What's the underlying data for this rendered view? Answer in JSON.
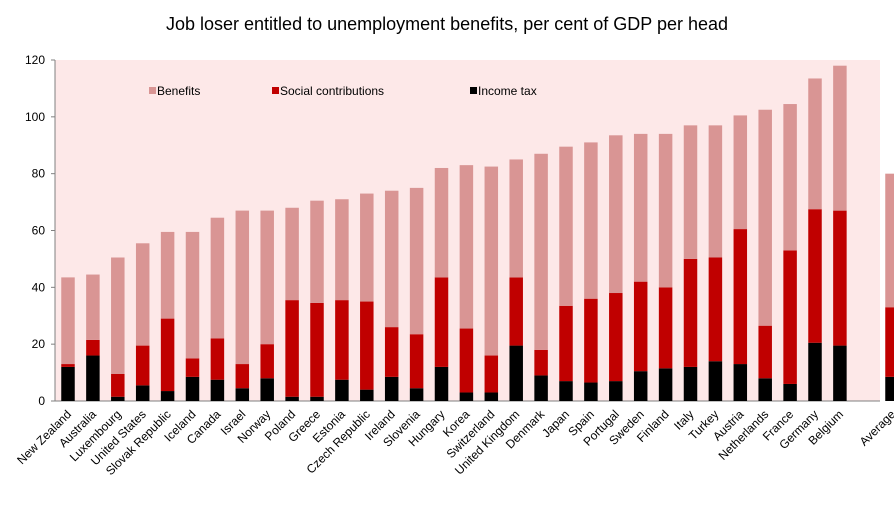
{
  "chart_data": {
    "type": "bar",
    "stacked": true,
    "title": "Job loser entitled to unemployment benefits, per cent of GDP per head",
    "xlabel": "",
    "ylabel": "",
    "ylim": [
      0,
      120
    ],
    "yticks": [
      0,
      20,
      40,
      60,
      80,
      100,
      120
    ],
    "grid": false,
    "legend_position": "top-left",
    "plot_background": "#fde8e8",
    "categories": [
      "New Zealand",
      "Australia",
      "Luxembourg",
      "United States",
      "Slovak Republic",
      "Iceland",
      "Canada",
      "Israel",
      "Norway",
      "Poland",
      "Greece",
      "Estonia",
      "Czech Republic",
      "Ireland",
      "Slovenia",
      "Hungary",
      "Korea",
      "Switzerland",
      "United Kingdom",
      "Denmark",
      "Japan",
      "Spain",
      "Portugal",
      "Sweden",
      "Finland",
      "Italy",
      "Turkey",
      "Austria",
      "Netherlands",
      "France",
      "Germany",
      "Belgium",
      "Average"
    ],
    "series": [
      {
        "name": "Income tax",
        "color": "#000000",
        "values": [
          12,
          16,
          1.5,
          5.5,
          3.5,
          8.5,
          7.5,
          4.5,
          8,
          1.5,
          1.5,
          7.5,
          4,
          8.5,
          4.5,
          12,
          3,
          3,
          19.5,
          9,
          7,
          6.5,
          7,
          10.5,
          11.5,
          12,
          14,
          13,
          8,
          6,
          20.5,
          19.5,
          8.5
        ]
      },
      {
        "name": "Social contributions",
        "color": "#c00000",
        "values": [
          1,
          5.5,
          8,
          14,
          25.5,
          6.5,
          14.5,
          8.5,
          12,
          34,
          33,
          28,
          31,
          17.5,
          19,
          31.5,
          22.5,
          13,
          24,
          9,
          26.5,
          29.5,
          31,
          31.5,
          28.5,
          38,
          36.5,
          47.5,
          18.5,
          47,
          47,
          47.5,
          24.5
        ]
      },
      {
        "name": "Benefits",
        "color": "#d99594",
        "values": [
          30.5,
          23,
          41,
          36,
          30.5,
          44.5,
          42.5,
          54,
          47,
          32.5,
          36,
          35.5,
          38,
          48,
          51.5,
          38.5,
          57.5,
          66.5,
          41.5,
          69,
          56,
          55,
          55.5,
          52,
          54,
          47,
          46.5,
          40,
          76,
          51.5,
          46,
          51,
          47
        ]
      }
    ]
  }
}
